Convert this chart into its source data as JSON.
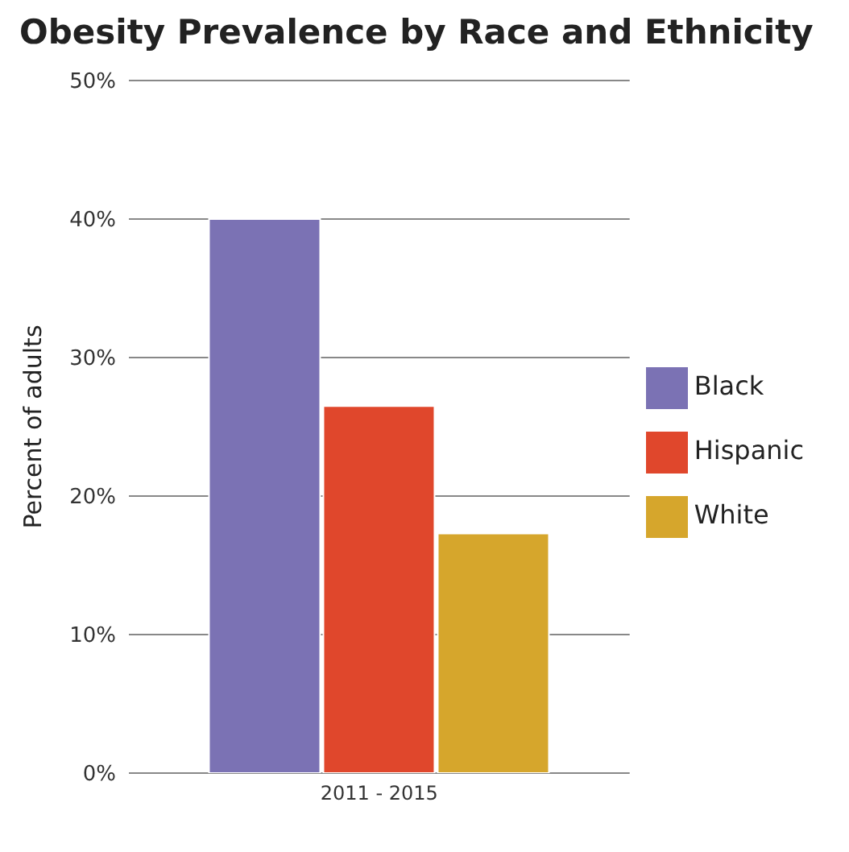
{
  "chart_data": {
    "type": "bar",
    "title": "Obesity Prevalence by Race and Ethnicity",
    "ylabel": "Percent of adults",
    "categories": [
      "2011 - 2015"
    ],
    "series": [
      {
        "name": "Black",
        "color": "#7b72b4",
        "values": [
          40
        ]
      },
      {
        "name": "Hispanic",
        "color": "#e0472c",
        "values": [
          26.5
        ]
      },
      {
        "name": "White",
        "color": "#d6a62c",
        "values": [
          17.3
        ]
      }
    ],
    "ylim": [
      0,
      50
    ],
    "yticks": [
      {
        "value": 0,
        "label": "0%"
      },
      {
        "value": 10,
        "label": "10%"
      },
      {
        "value": 20,
        "label": "20%"
      },
      {
        "value": 30,
        "label": "30%"
      },
      {
        "value": 40,
        "label": "40%"
      },
      {
        "value": 50,
        "label": "50%"
      }
    ],
    "grid": "y",
    "legend": "right"
  }
}
